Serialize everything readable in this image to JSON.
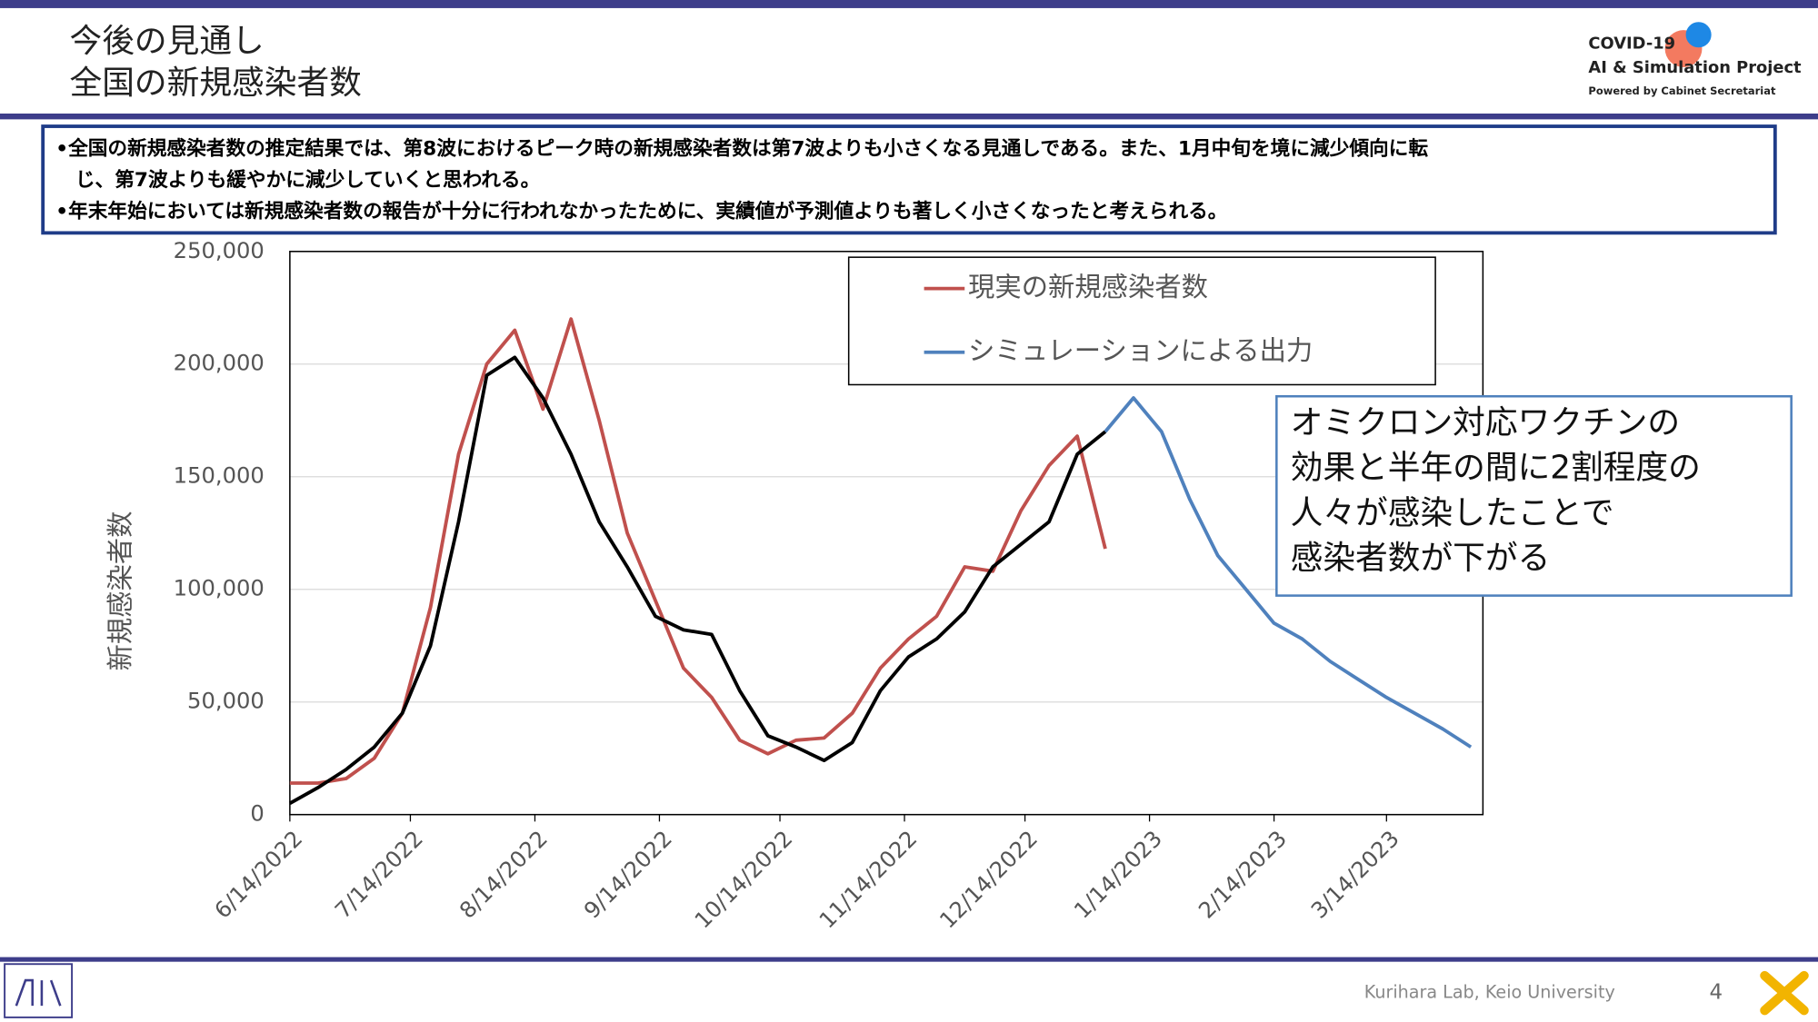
{
  "header": {
    "title": [
      "今後の見通し",
      "全国の新規感染者数"
    ],
    "logo": [
      "COVID-19",
      "AI & Simulation Project",
      "Powered by Cabinet Secretariat"
    ]
  },
  "summary": {
    "lines": [
      "•全国の新規感染者数の推定結果では、第8波におけるピーク時の新規感染者数は第7波よりも小さくなる見通しである。また、1月中旬を境に減少傾向に転",
      "　じ、第7波よりも緩やかに減少していくと思われる。",
      "•年末年始においては新規感染者数の報告が十分に行われなかったために、実績値が予測値よりも著しく小さくなったと考えられる。"
    ]
  },
  "chart_data": {
    "type": "line",
    "y_label": "新規感染者数",
    "x": [
      "2022-06-14",
      "2022-06-21",
      "2022-06-28",
      "2022-07-05",
      "2022-07-12",
      "2022-07-19",
      "2022-07-26",
      "2022-08-02",
      "2022-08-09",
      "2022-08-16",
      "2022-08-23",
      "2022-08-30",
      "2022-09-06",
      "2022-09-13",
      "2022-09-20",
      "2022-09-27",
      "2022-10-04",
      "2022-10-11",
      "2022-10-18",
      "2022-10-25",
      "2022-11-01",
      "2022-11-08",
      "2022-11-15",
      "2022-11-22",
      "2022-11-29",
      "2022-12-06",
      "2022-12-13",
      "2022-12-20",
      "2022-12-27",
      "2023-01-03",
      "2023-01-10",
      "2023-01-17",
      "2023-01-24",
      "2023-01-31",
      "2023-02-07",
      "2023-02-14",
      "2023-02-21",
      "2023-02-28",
      "2023-03-07",
      "2023-03-14",
      "2023-03-21",
      "2023-03-28",
      "2023-04-04"
    ],
    "series": [
      {
        "name": "現実の新規感染者数",
        "color": "#c0504d",
        "values": [
          14000,
          14000,
          16000,
          25000,
          45000,
          92000,
          160000,
          200000,
          215000,
          180000,
          220000,
          175000,
          125000,
          95000,
          65000,
          52000,
          33000,
          27000,
          33000,
          34000,
          45000,
          65000,
          78000,
          88000,
          110000,
          108000,
          135000,
          155000,
          168000,
          118000,
          null,
          null,
          null,
          null,
          null,
          null,
          null,
          null,
          null,
          null,
          null,
          null,
          null
        ]
      },
      {
        "color": "#000000",
        "values": [
          5000,
          12000,
          20000,
          30000,
          45000,
          75000,
          130000,
          195000,
          203000,
          185000,
          160000,
          130000,
          110000,
          88000,
          82000,
          80000,
          55000,
          35000,
          30000,
          24000,
          32000,
          55000,
          70000,
          78000,
          90000,
          110000,
          120000,
          130000,
          160000,
          170000,
          null,
          null,
          null,
          null,
          null,
          null,
          null,
          null,
          null,
          null,
          null,
          null,
          null
        ]
      },
      {
        "name": "シミュレーションによる出力",
        "color": "#4f81bd",
        "values": [
          null,
          null,
          null,
          null,
          null,
          null,
          null,
          null,
          null,
          null,
          null,
          null,
          null,
          null,
          null,
          null,
          null,
          null,
          null,
          null,
          null,
          null,
          null,
          null,
          null,
          null,
          null,
          null,
          null,
          170000,
          185000,
          170000,
          140000,
          115000,
          100000,
          85000,
          78000,
          68000,
          60000,
          52000,
          45000,
          38000,
          30000
        ]
      }
    ],
    "xlim": [
      "2022-06-14",
      "2023-04-07"
    ],
    "xticks": [
      {
        "value": "2022-06-14",
        "label": "6/14/2022"
      },
      {
        "value": "2022-07-14",
        "label": "7/14/2022"
      },
      {
        "value": "2022-08-14",
        "label": "8/14/2022"
      },
      {
        "value": "2022-09-14",
        "label": "9/14/2022"
      },
      {
        "value": "2022-10-14",
        "label": "10/14/2022"
      },
      {
        "value": "2022-11-14",
        "label": "11/14/2022"
      },
      {
        "value": "2022-12-14",
        "label": "12/14/2022"
      },
      {
        "value": "2023-01-14",
        "label": "1/14/2023"
      },
      {
        "value": "2023-02-14",
        "label": "2/14/2023"
      },
      {
        "value": "2023-03-14",
        "label": "3/14/2023"
      }
    ],
    "ylim": [
      0,
      250000
    ],
    "yticks": [
      0,
      {
        "value": 50000,
        "label": "50,000"
      },
      {
        "value": 100000,
        "label": "100,000"
      },
      {
        "value": 150000,
        "label": "150,000"
      },
      {
        "value": 200000,
        "label": "200,000"
      },
      {
        "value": 250000,
        "label": "250,000"
      }
    ],
    "grid": true
  },
  "callout": {
    "lines": [
      "オミクロン対応ワクチンの",
      "効果と半年の間に2割程度の",
      "人々が感染したことで",
      "感染者数が下がる"
    ]
  },
  "footer": {
    "credit": "Kurihara Lab, Keio University",
    "page": "4"
  }
}
